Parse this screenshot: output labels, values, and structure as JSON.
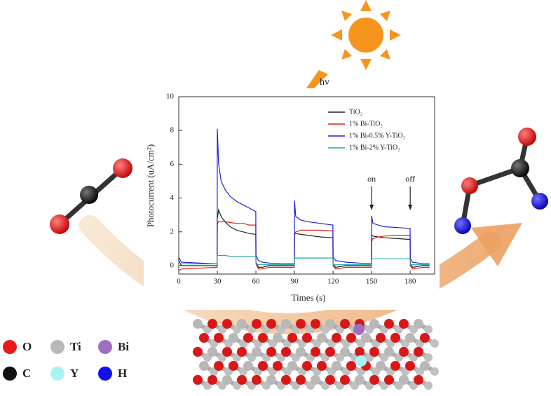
{
  "chart_data": {
    "type": "line",
    "x_label": "Times (s)",
    "y_label": "Photocurrent (uA/cm²)",
    "x": [
      0,
      2,
      29.9,
      30,
      31,
      33,
      36,
      40,
      45,
      50,
      55,
      59.9,
      60,
      62,
      65,
      70,
      80,
      89.9,
      90,
      91,
      95,
      100,
      110,
      119.9,
      120,
      122,
      130,
      140,
      149.9,
      150,
      151,
      155,
      160,
      170,
      179.9,
      180,
      182,
      190,
      195
    ],
    "series": [
      {
        "name": "TiO₂",
        "color": "#222222",
        "values": [
          0.3,
          0,
          0,
          2.8,
          3.3,
          2.9,
          2.6,
          2.3,
          2.1,
          2.0,
          1.9,
          1.85,
          0.2,
          -0.1,
          -0.1,
          0,
          0,
          0,
          1.9,
          1.9,
          1.85,
          1.8,
          1.7,
          1.65,
          0.1,
          -0.1,
          0,
          0,
          0,
          1.8,
          1.75,
          1.7,
          1.65,
          1.6,
          1.55,
          0.1,
          -0.1,
          0,
          0
        ]
      },
      {
        "name": "1% Bi-TiO₂",
        "color": "#e02020",
        "values": [
          -0.3,
          -0.2,
          -0.1,
          2.5,
          2.6,
          2.6,
          2.6,
          2.55,
          2.5,
          2.5,
          2.4,
          2.4,
          0.1,
          -0.2,
          -0.2,
          -0.1,
          -0.1,
          -0.1,
          1.8,
          2.0,
          2.1,
          2.1,
          2.1,
          2.05,
          0,
          -0.2,
          -0.1,
          -0.1,
          -0.1,
          1.4,
          1.6,
          1.7,
          1.75,
          1.8,
          1.8,
          0,
          -0.2,
          -0.1,
          -0.1
        ]
      },
      {
        "name": "1% Bi-0.5% Y-TiO₂",
        "color": "#2020e0",
        "values": [
          0.5,
          0.2,
          0.1,
          8.1,
          6.0,
          5.0,
          4.5,
          4.1,
          3.8,
          3.6,
          3.4,
          3.2,
          0.6,
          0.3,
          0.2,
          0.15,
          0.1,
          0.1,
          3.85,
          2.9,
          2.7,
          2.6,
          2.5,
          2.4,
          0.5,
          0.3,
          0.2,
          0.15,
          0.1,
          2.95,
          2.5,
          2.4,
          2.3,
          2.25,
          2.2,
          0.4,
          0.2,
          0.1,
          0.1
        ]
      },
      {
        "name": "1% Bi-2% Y-TiO₂",
        "color": "#20a8a0",
        "values": [
          0.2,
          0.1,
          0.1,
          0.6,
          0.6,
          0.6,
          0.6,
          0.55,
          0.55,
          0.55,
          0.55,
          0.55,
          0.1,
          0.05,
          0.05,
          0.05,
          0.05,
          0.05,
          0.45,
          0.45,
          0.45,
          0.45,
          0.45,
          0.45,
          0.05,
          0.05,
          0.05,
          0.05,
          0.05,
          0.4,
          0.4,
          0.4,
          0.4,
          0.4,
          0.4,
          0.05,
          0.05,
          0.05,
          0.05
        ]
      }
    ],
    "xlim": [
      0,
      199
    ],
    "xticks": [
      0,
      30,
      60,
      90,
      120,
      150,
      180
    ],
    "ylim": [
      -0.5,
      10
    ],
    "yticks": [
      0,
      2,
      4,
      6,
      8,
      10
    ],
    "legend": "upper right",
    "annotations": [
      {
        "text": "on",
        "x": 150
      },
      {
        "text": "off",
        "x": 180
      }
    ]
  },
  "light_label": "hv",
  "atom_legend": [
    {
      "label": "O",
      "color": "#e8191c"
    },
    {
      "label": "Ti",
      "color": "#b8b8b8"
    },
    {
      "label": "Bi",
      "color": "#a070c0"
    },
    {
      "label": "C",
      "color": "#111111"
    },
    {
      "label": "Y",
      "color": "#a8f4f4"
    },
    {
      "label": "H",
      "color": "#1010e8"
    }
  ]
}
